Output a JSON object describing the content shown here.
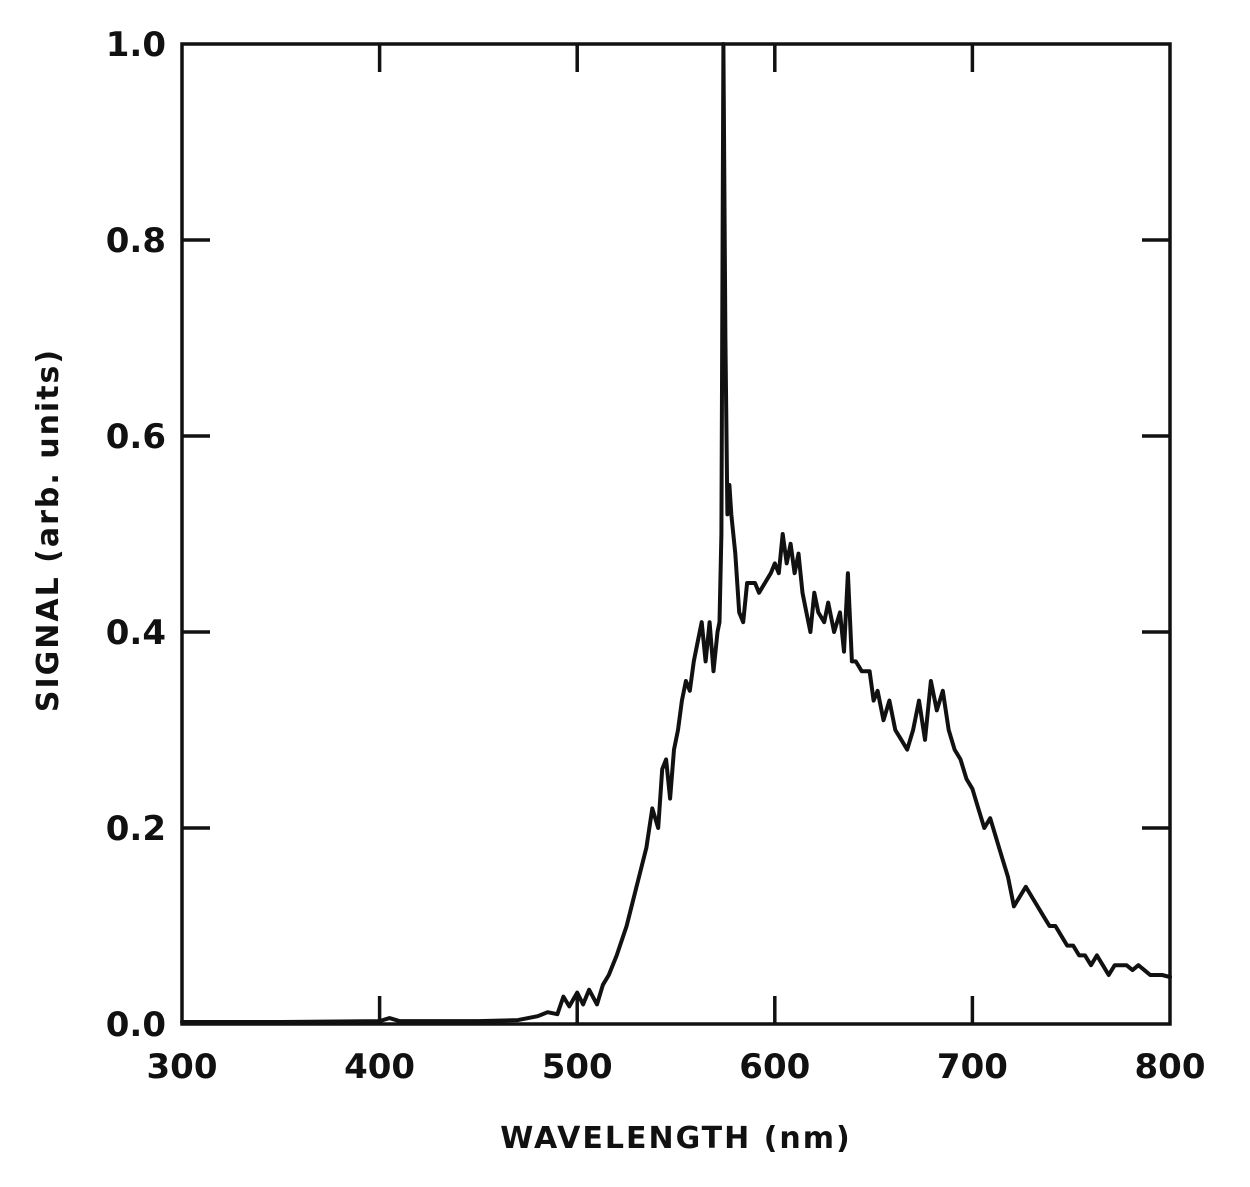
{
  "chart_data": {
    "type": "line",
    "title": "",
    "xlabel": "WAVELENGTH (nm)",
    "ylabel": "SIGNAL (arb. units)",
    "xlim": [
      300,
      800
    ],
    "ylim": [
      0.0,
      1.0
    ],
    "xticks": [
      300,
      400,
      500,
      600,
      700,
      800
    ],
    "xtick_labels": [
      "300",
      "400",
      "500",
      "600",
      "700",
      "800"
    ],
    "yticks": [
      0.0,
      0.2,
      0.4,
      0.6,
      0.8,
      1.0
    ],
    "ytick_labels": [
      "0.0",
      "0.2",
      "0.4",
      "0.6",
      "0.8",
      "1.0"
    ],
    "grid": false,
    "line_color": "#111111",
    "series": [
      {
        "x": [
          300,
          350,
          400,
          405,
          410,
          450,
          470,
          480,
          485,
          490,
          493,
          496,
          500,
          503,
          506,
          510,
          513,
          516,
          520,
          525,
          530,
          535,
          538,
          541,
          543,
          545,
          547,
          549,
          551,
          553,
          555,
          557,
          559,
          561,
          563,
          565,
          567,
          569,
          571,
          572,
          573,
          574,
          575,
          576,
          577,
          578,
          580,
          582,
          584,
          586,
          590,
          592,
          595,
          598,
          600,
          602,
          604,
          606,
          608,
          610,
          612,
          614,
          616,
          618,
          620,
          622,
          625,
          627,
          630,
          633,
          635,
          637,
          639,
          641,
          644,
          648,
          650,
          652,
          655,
          658,
          661,
          664,
          667,
          670,
          673,
          676,
          679,
          682,
          685,
          688,
          691,
          694,
          697,
          700,
          703,
          706,
          709,
          712,
          715,
          718,
          721,
          724,
          727,
          730,
          733,
          736,
          739,
          742,
          745,
          748,
          751,
          754,
          757,
          760,
          763,
          766,
          769,
          772,
          775,
          778,
          781,
          784,
          787,
          790,
          793,
          796,
          800
        ],
        "y": [
          0.002,
          0.002,
          0.003,
          0.006,
          0.003,
          0.003,
          0.004,
          0.008,
          0.012,
          0.01,
          0.028,
          0.018,
          0.032,
          0.02,
          0.035,
          0.02,
          0.04,
          0.05,
          0.07,
          0.1,
          0.14,
          0.18,
          0.22,
          0.2,
          0.26,
          0.27,
          0.23,
          0.28,
          0.3,
          0.33,
          0.35,
          0.34,
          0.37,
          0.39,
          0.41,
          0.37,
          0.41,
          0.36,
          0.4,
          0.41,
          0.5,
          1.0,
          0.7,
          0.52,
          0.55,
          0.52,
          0.48,
          0.42,
          0.41,
          0.45,
          0.45,
          0.44,
          0.45,
          0.46,
          0.47,
          0.46,
          0.5,
          0.47,
          0.49,
          0.46,
          0.48,
          0.44,
          0.42,
          0.4,
          0.44,
          0.42,
          0.41,
          0.43,
          0.4,
          0.42,
          0.38,
          0.46,
          0.37,
          0.37,
          0.36,
          0.36,
          0.33,
          0.34,
          0.31,
          0.33,
          0.3,
          0.29,
          0.28,
          0.3,
          0.33,
          0.29,
          0.35,
          0.32,
          0.34,
          0.3,
          0.28,
          0.27,
          0.25,
          0.24,
          0.22,
          0.2,
          0.21,
          0.19,
          0.17,
          0.15,
          0.12,
          0.13,
          0.14,
          0.13,
          0.12,
          0.11,
          0.1,
          0.1,
          0.09,
          0.08,
          0.08,
          0.07,
          0.07,
          0.06,
          0.07,
          0.06,
          0.05,
          0.06,
          0.06,
          0.06,
          0.055,
          0.06,
          0.055,
          0.05,
          0.05,
          0.05,
          0.048
        ]
      }
    ]
  }
}
